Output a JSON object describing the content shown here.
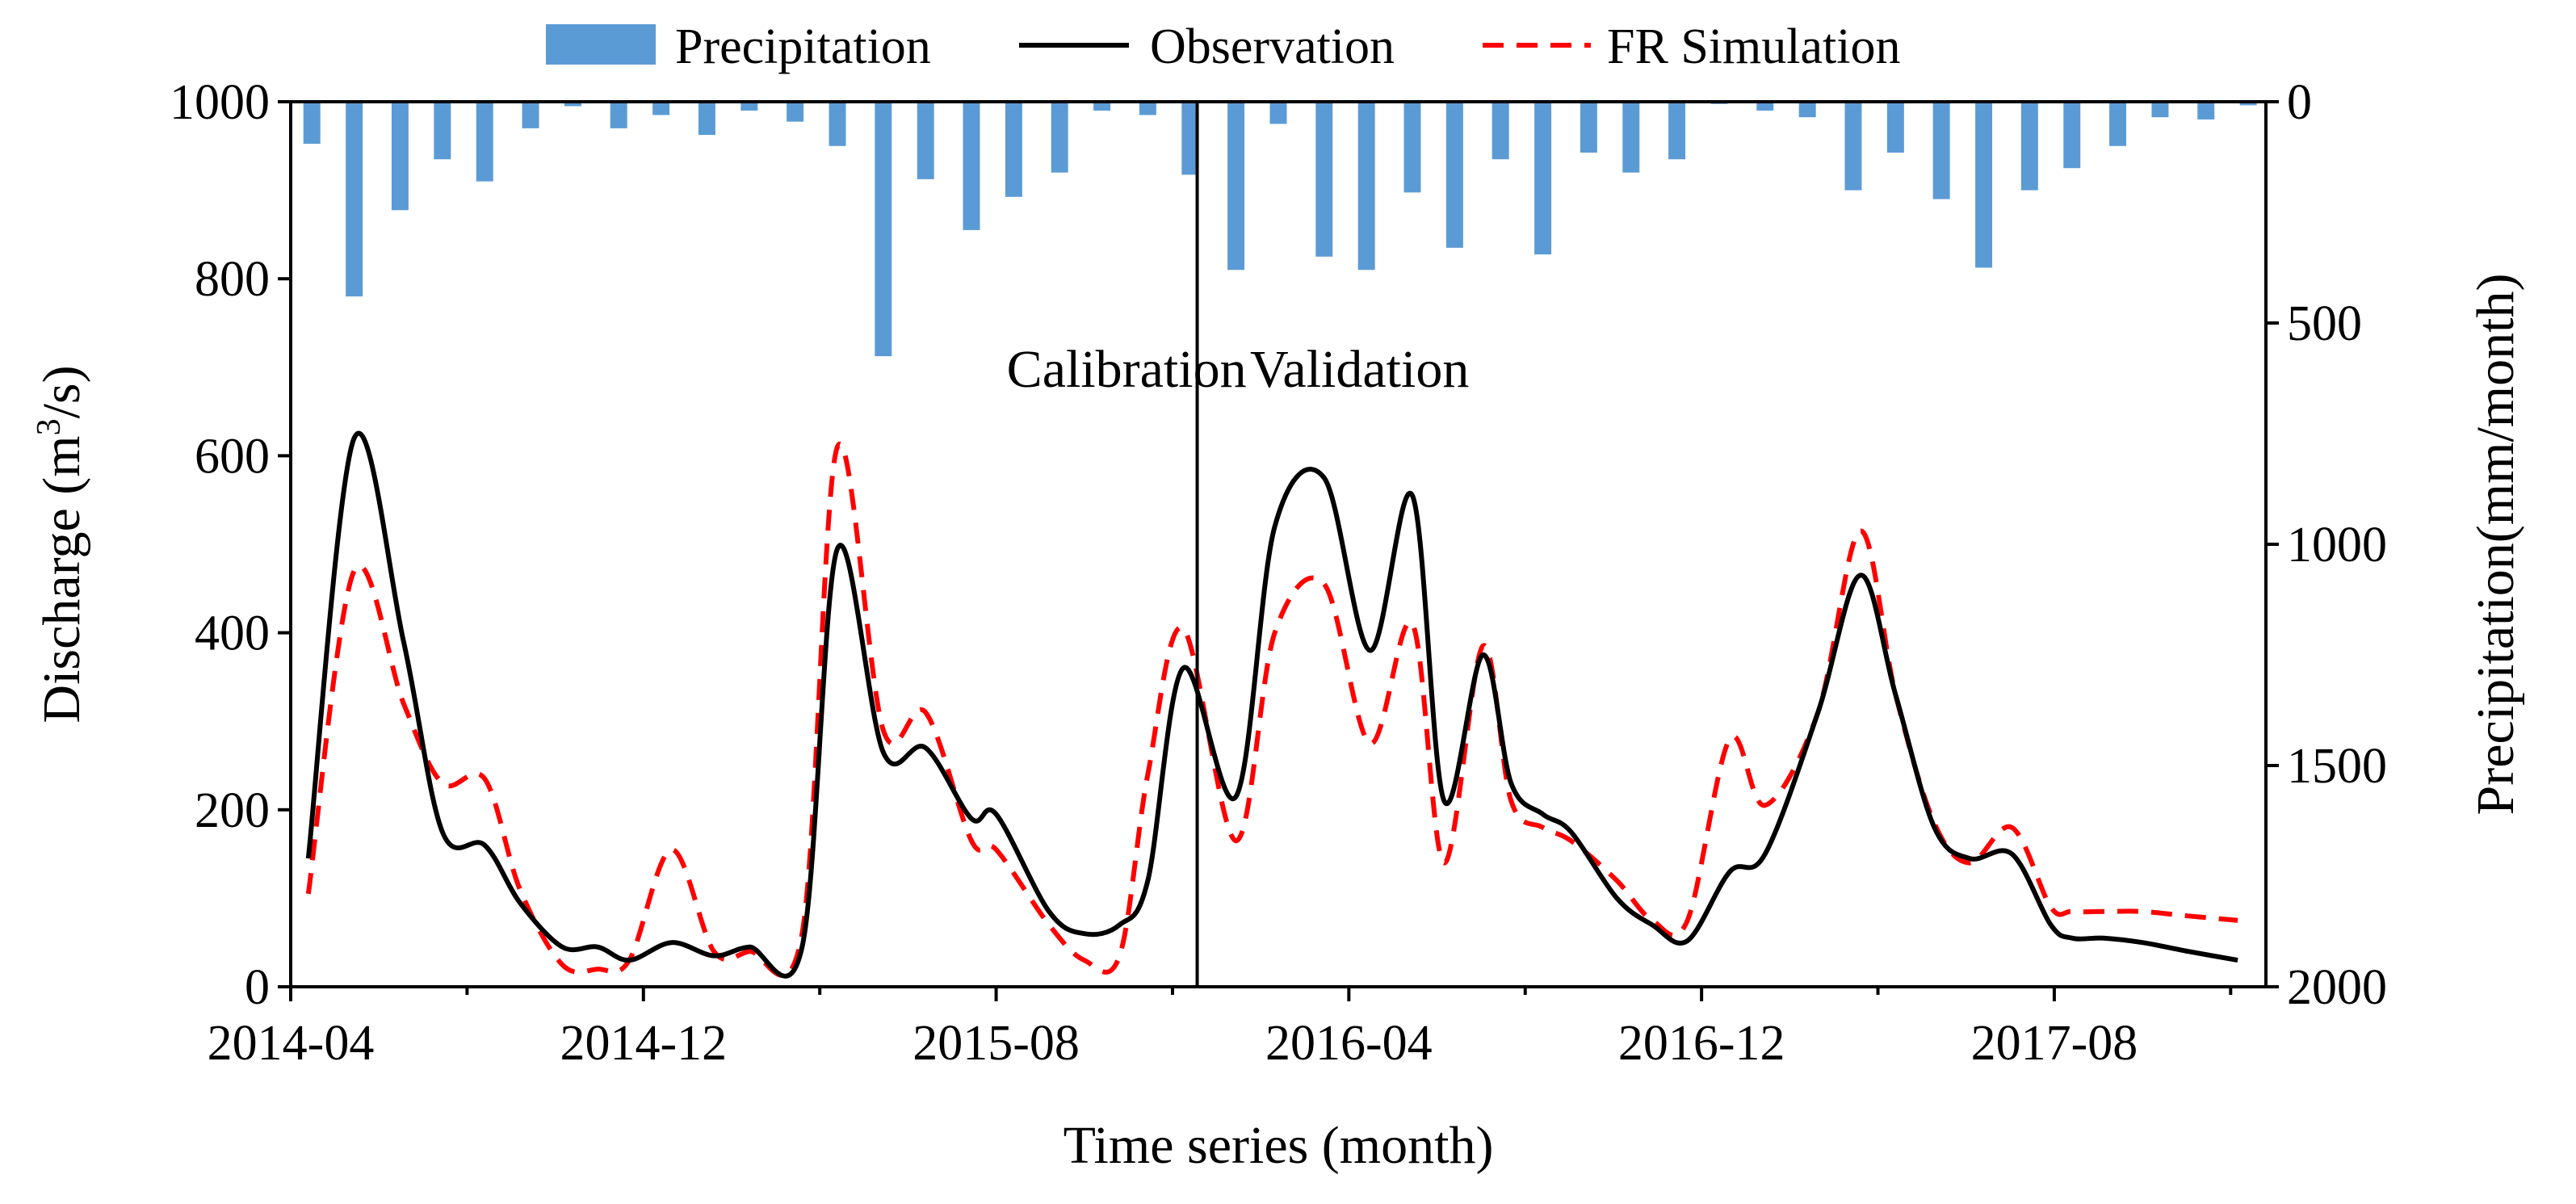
{
  "chart_data": {
    "type": "line",
    "title": "",
    "xlabel": "Time series (month)",
    "ylabel_main": "Discharge (m",
    "ylabel_sup": "3",
    "ylabel_tail": "/s)",
    "ylabel_right": "Precipitation(mm/month)",
    "ylim_left": [
      0,
      1000
    ],
    "ylim_right": [
      2000,
      0
    ],
    "xlim": [
      0,
      56
    ],
    "left_ticks": [
      "0",
      "200",
      "400",
      "600",
      "800",
      "1000"
    ],
    "left_tick_values": [
      0,
      200,
      400,
      600,
      800,
      1000
    ],
    "right_ticks": [
      "0",
      "500",
      "1000",
      "1500",
      "2000"
    ],
    "right_tick_values": [
      0,
      500,
      1000,
      1500,
      2000
    ],
    "x_tick_labels": [
      "2014-04",
      "2014-12",
      "2015-08",
      "2016-04",
      "2016-12",
      "2017-08"
    ],
    "x_tick_positions": [
      0,
      10,
      20,
      30,
      40,
      50
    ],
    "legend": {
      "placement": "top-center",
      "items": [
        {
          "label": "Precipitation",
          "kind": "bar"
        },
        {
          "label": "Observation",
          "kind": "solid-line"
        },
        {
          "label": "FR Simulation",
          "kind": "dashed-line"
        }
      ]
    },
    "divider_x": 25.7,
    "annotations": [
      {
        "text": "Calibration",
        "x": 20.3,
        "y": 678
      },
      {
        "text": "Validation",
        "x": 27.2,
        "y": 678
      }
    ],
    "colors": {
      "precipitation": "#5b9bd5",
      "observation": "#000000",
      "simulation": "#ff0000"
    },
    "series": [
      {
        "name": "Precipitation",
        "axis": "right",
        "x": [
          0.6,
          1.8,
          3.1,
          4.3,
          5.5,
          6.8,
          8.0,
          9.3,
          10.5,
          11.8,
          13.0,
          14.3,
          15.5,
          16.8,
          18.0,
          19.3,
          20.5,
          21.8,
          23.0,
          24.3,
          25.5,
          26.8,
          28.0,
          29.3,
          30.5,
          31.8,
          33.0,
          34.3,
          35.5,
          36.8,
          38.0,
          39.3,
          40.5,
          41.8,
          43.0,
          44.3,
          45.5,
          46.8,
          48.0,
          49.3,
          50.5,
          51.8,
          53.0,
          54.3,
          55.5
        ],
        "values": [
          95,
          440,
          245,
          130,
          180,
          60,
          10,
          60,
          30,
          75,
          20,
          45,
          100,
          575,
          175,
          290,
          215,
          160,
          20,
          30,
          165,
          380,
          50,
          350,
          380,
          205,
          330,
          130,
          345,
          115,
          160,
          130,
          5,
          20,
          35,
          200,
          115,
          220,
          375,
          200,
          150,
          100,
          35,
          40,
          8
        ]
      },
      {
        "name": "Observation",
        "axis": "left",
        "x": [
          0.5,
          1.8,
          3.2,
          4.3,
          5.5,
          6.5,
          7.7,
          8.7,
          9.6,
          10.8,
          12.0,
          13.0,
          14.5,
          15.5,
          16.8,
          18.0,
          19.3,
          20.0,
          21.5,
          22.5,
          23.5,
          24.3,
          25.3,
          26.8,
          27.9,
          29.3,
          30.6,
          31.8,
          32.7,
          33.8,
          34.6,
          35.5,
          36.3,
          37.6,
          38.6,
          39.6,
          40.8,
          41.8,
          43.3,
          44.5,
          45.5,
          46.6,
          47.6,
          48.8,
          49.9,
          50.5,
          51.4,
          52.5,
          53.8,
          55.2
        ],
        "values": [
          145,
          620,
          390,
          175,
          160,
          95,
          45,
          45,
          30,
          50,
          35,
          45,
          45,
          495,
          265,
          270,
          190,
          195,
          85,
          60,
          70,
          120,
          360,
          215,
          520,
          575,
          380,
          555,
          210,
          375,
          230,
          195,
          175,
          100,
          70,
          52,
          130,
          150,
          310,
          465,
          330,
          180,
          145,
          150,
          70,
          55,
          55,
          50,
          40,
          30
        ]
      },
      {
        "name": "FR Simulation",
        "axis": "left",
        "x": [
          0.5,
          1.8,
          3.2,
          4.3,
          5.5,
          6.5,
          7.7,
          8.7,
          9.6,
          10.8,
          12.0,
          13.0,
          14.5,
          15.5,
          16.8,
          18.0,
          19.3,
          20.0,
          21.5,
          22.5,
          23.5,
          24.3,
          25.3,
          26.8,
          27.9,
          29.3,
          30.6,
          31.8,
          32.7,
          33.8,
          34.6,
          35.5,
          36.3,
          37.6,
          38.6,
          39.6,
          40.8,
          41.8,
          43.3,
          44.5,
          45.5,
          46.6,
          47.6,
          48.8,
          49.9,
          50.5,
          51.4,
          52.5,
          53.8,
          55.2
        ],
        "values": [
          105,
          470,
          320,
          230,
          235,
          110,
          25,
          20,
          30,
          155,
          40,
          40,
          60,
          610,
          290,
          310,
          165,
          155,
          70,
          30,
          35,
          240,
          405,
          165,
          400,
          455,
          275,
          410,
          140,
          385,
          210,
          180,
          165,
          120,
          75,
          75,
          280,
          205,
          310,
          515,
          330,
          185,
          140,
          180,
          90,
          85,
          85,
          85,
          80,
          75
        ]
      }
    ]
  }
}
